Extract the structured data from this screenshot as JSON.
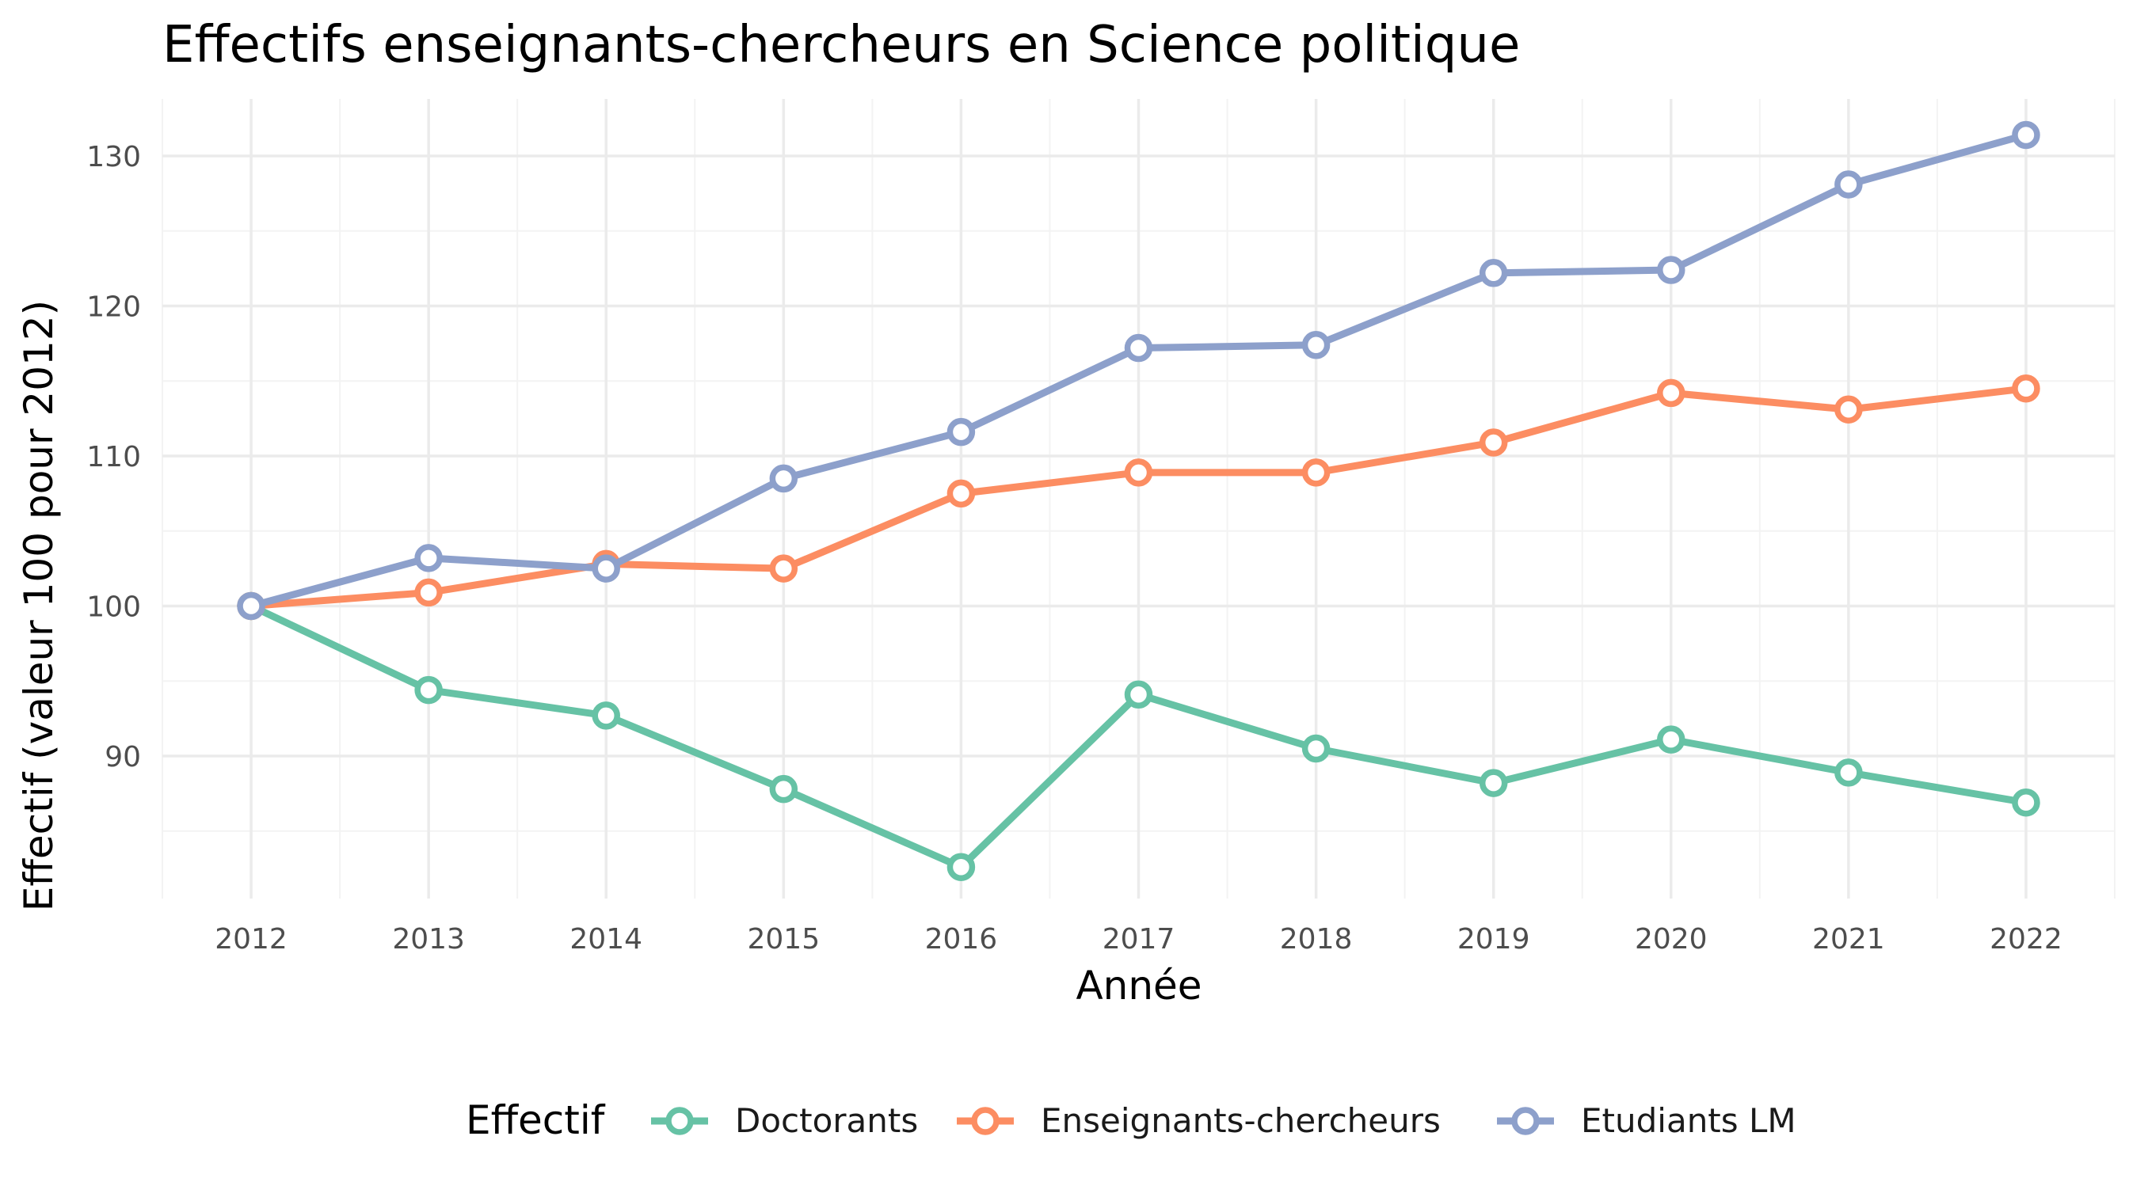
{
  "chart_data": {
    "type": "line",
    "title": "Effectifs enseignants-chercheurs en Science politique",
    "xlabel": "Année",
    "ylabel": "Effectif (valeur 100 pour 2012)",
    "x": [
      2012,
      2013,
      2014,
      2015,
      2016,
      2017,
      2018,
      2019,
      2020,
      2021,
      2022
    ],
    "x_tick_labels": [
      "2012",
      "2013",
      "2014",
      "2015",
      "2016",
      "2017",
      "2018",
      "2019",
      "2020",
      "2021",
      "2022"
    ],
    "y_ticks": [
      90,
      100,
      110,
      120,
      130
    ],
    "y_tick_labels": [
      "90",
      "100",
      "110",
      "120",
      "130"
    ],
    "ylim": [
      80.5,
      133.8
    ],
    "xlim": [
      2011.5,
      2022.5
    ],
    "grid": true,
    "legend_position": "bottom",
    "legend_title": "Effectif",
    "series": [
      {
        "name": "Doctorants",
        "color": "#66c2a5",
        "values": [
          100,
          94.4,
          92.7,
          87.8,
          82.6,
          94.1,
          90.5,
          88.2,
          91.1,
          88.9,
          86.9
        ]
      },
      {
        "name": "Enseignants-chercheurs",
        "color": "#fc8d62",
        "values": [
          100,
          100.9,
          102.8,
          102.5,
          107.5,
          108.9,
          108.9,
          110.9,
          114.2,
          113.1,
          114.5
        ]
      },
      {
        "name": "Etudiants LM",
        "color": "#8da0cb",
        "values": [
          100,
          103.2,
          102.5,
          108.5,
          111.6,
          117.2,
          117.4,
          122.2,
          122.4,
          128.1,
          131.4
        ]
      }
    ]
  }
}
